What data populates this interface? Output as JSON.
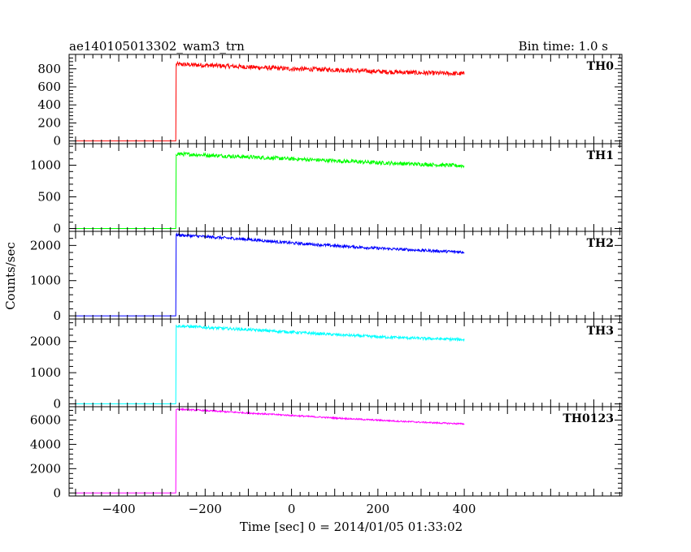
{
  "chart_data": {
    "type": "line",
    "title": "ae140105013302_wam3_trn",
    "subtitle": "Bin time: 1.0 s",
    "xlabel": "Time [sec] 0 = 2014/01/05 01:33:02",
    "ylabel": "Counts/sec",
    "xlim": [
      -515,
      765
    ],
    "x_ticks": [
      -400,
      -200,
      0,
      200,
      400
    ],
    "x_tick_labels": [
      "−400",
      "−200",
      "0",
      "200",
      "400"
    ],
    "x_data_range": [
      -500,
      400
    ],
    "trigger_time": -268,
    "series": [
      {
        "name": "TH0",
        "color": "#ff0000",
        "ylim": [
          -30,
          960
        ],
        "y_ticks": [
          0,
          200,
          400,
          600,
          800
        ],
        "y_tick_labels": [
          "0",
          "200",
          "400",
          "600",
          "800"
        ],
        "pre_level": 0,
        "points": [
          [
            -267,
            850
          ],
          [
            -200,
            840
          ],
          [
            -100,
            820
          ],
          [
            0,
            800
          ],
          [
            100,
            790
          ],
          [
            200,
            770
          ],
          [
            300,
            755
          ],
          [
            400,
            745
          ]
        ],
        "noise": 25
      },
      {
        "name": "TH1",
        "color": "#00ff00",
        "ylim": [
          -45,
          1340
        ],
        "y_ticks": [
          0,
          500,
          1000
        ],
        "y_tick_labels": [
          "0",
          "500",
          "1000"
        ],
        "pre_level": 0,
        "points": [
          [
            -267,
            1180
          ],
          [
            -200,
            1160
          ],
          [
            -100,
            1130
          ],
          [
            0,
            1100
          ],
          [
            100,
            1070
          ],
          [
            200,
            1040
          ],
          [
            300,
            1015
          ],
          [
            400,
            990
          ]
        ],
        "noise": 30
      },
      {
        "name": "TH2",
        "color": "#0000ff",
        "ylim": [
          -90,
          2400
        ],
        "y_ticks": [
          0,
          1000,
          2000
        ],
        "y_tick_labels": [
          "0",
          "1000",
          "2000"
        ],
        "pre_level": 0,
        "points": [
          [
            -267,
            2300
          ],
          [
            -200,
            2250
          ],
          [
            -100,
            2170
          ],
          [
            0,
            2070
          ],
          [
            100,
            1990
          ],
          [
            200,
            1920
          ],
          [
            300,
            1860
          ],
          [
            400,
            1810
          ]
        ],
        "noise": 40
      },
      {
        "name": "TH3",
        "color": "#00ffff",
        "ylim": [
          -90,
          2720
        ],
        "y_ticks": [
          0,
          1000,
          2000
        ],
        "y_tick_labels": [
          "0",
          "1000",
          "2000"
        ],
        "pre_level": 0,
        "points": [
          [
            -267,
            2500
          ],
          [
            -200,
            2450
          ],
          [
            -100,
            2380
          ],
          [
            0,
            2300
          ],
          [
            100,
            2220
          ],
          [
            200,
            2150
          ],
          [
            300,
            2100
          ],
          [
            400,
            2060
          ]
        ],
        "noise": 45
      },
      {
        "name": "TH0123",
        "color": "#ff00ff",
        "ylim": [
          -250,
          7100
        ],
        "y_ticks": [
          0,
          2000,
          4000,
          6000
        ],
        "y_tick_labels": [
          "0",
          "2000",
          "4000",
          "6000"
        ],
        "pre_level": 0,
        "points": [
          [
            -267,
            6900
          ],
          [
            -200,
            6780
          ],
          [
            -100,
            6580
          ],
          [
            0,
            6380
          ],
          [
            100,
            6170
          ],
          [
            200,
            5990
          ],
          [
            300,
            5820
          ],
          [
            400,
            5680
          ]
        ],
        "noise": 60
      }
    ]
  }
}
